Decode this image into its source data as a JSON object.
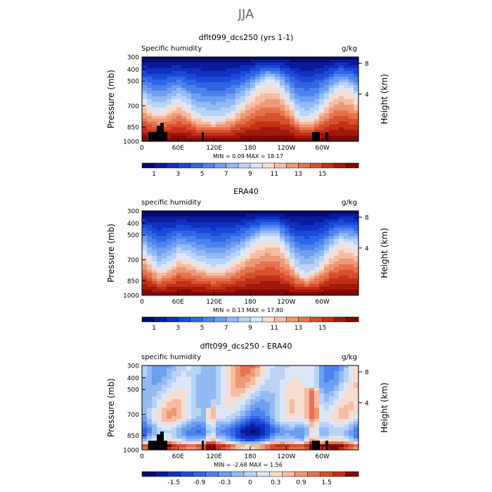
{
  "figure_title": "JJA",
  "chart_data": [
    {
      "type": "heatmap",
      "title": "dflt099_dcs250 (yrs 1-1)",
      "variable": "Specific humidity",
      "units": "g/kg",
      "xticks": [
        "0",
        "60E",
        "120E",
        "180",
        "120W",
        "60W"
      ],
      "ylabel": "Pressure (mb)",
      "yticks": [
        "300",
        "400",
        "500",
        "700",
        "850",
        "1000"
      ],
      "y2label": "Height (km)",
      "y2ticks": [
        "8",
        "4"
      ],
      "stats": "MIN =    0.09   MAX =   18.17",
      "colorbar_labels": [
        "1",
        "3",
        "5",
        "7",
        "9",
        "11",
        "13",
        "15"
      ],
      "min": 0.09,
      "max": 18.17
    },
    {
      "type": "heatmap",
      "title": "ERA40",
      "variable": "specific humidity",
      "units": "g/kg",
      "xticks": [
        "0",
        "60E",
        "120E",
        "180",
        "120W",
        "60W"
      ],
      "ylabel": "Pressure (mb)",
      "yticks": [
        "300",
        "400",
        "500",
        "700",
        "850",
        "1000"
      ],
      "y2label": "Height (km)",
      "y2ticks": [
        "8",
        "4"
      ],
      "stats": "MIN =    0.13   MAX =   17.80",
      "colorbar_labels": [
        "1",
        "3",
        "5",
        "7",
        "9",
        "11",
        "13",
        "15"
      ],
      "min": 0.13,
      "max": 17.8
    },
    {
      "type": "heatmap",
      "title": "dflt099_dcs250 - ERA40",
      "variable": "specific humidity",
      "units": "g/kg",
      "xticks": [
        "0",
        "60E",
        "120E",
        "180",
        "120W",
        "60W"
      ],
      "ylabel": "Pressure (mb)",
      "yticks": [
        "300",
        "400",
        "500",
        "700",
        "850",
        "1000"
      ],
      "y2label": "Height (km)",
      "y2ticks": [
        "8",
        "4"
      ],
      "stats": "MIN =   -2.68   MAX =    1.56",
      "colorbar_labels": [
        "-1.5",
        "-0.9",
        "-0.3",
        "0",
        "0.3",
        "0.9",
        "1.5"
      ],
      "min": -2.68,
      "max": 1.56
    }
  ],
  "colors": {
    "full_scale": [
      "#08086e",
      "#0a1a9a",
      "#1030c0",
      "#1a4ad8",
      "#2f66e6",
      "#4c82ec",
      "#6d9ef0",
      "#92baf3",
      "#b8d3f6",
      "#dbe6f8",
      "#f7dcd0",
      "#f4bca2",
      "#ee9874",
      "#e6724e",
      "#d8502c",
      "#c23016",
      "#a2180c",
      "#7e0a04"
    ],
    "diff_scale": [
      "#08086e",
      "#0a1a9a",
      "#1030c0",
      "#1a4ad8",
      "#2f66e6",
      "#4c82ec",
      "#6d9ef0",
      "#92baf3",
      "#b8d3f6",
      "#dbe6f8",
      "#f7dcd0",
      "#f4bca2",
      "#ee9874",
      "#e6724e",
      "#d8502c",
      "#c23016",
      "#7e0a04"
    ],
    "topography": "#000000"
  }
}
